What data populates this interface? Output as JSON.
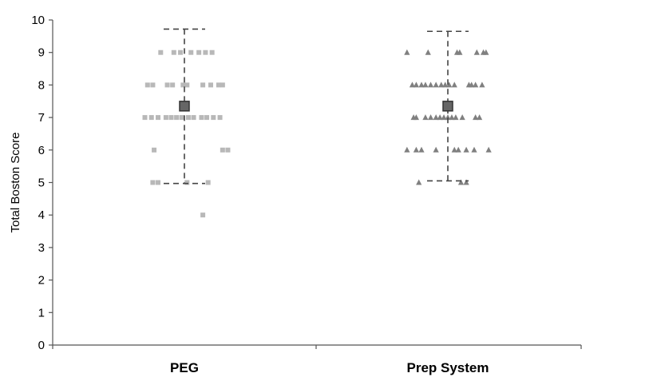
{
  "chart_data": {
    "type": "scatter",
    "ylabel": "Total Boston Score",
    "ylim": [
      0,
      10
    ],
    "yticks": [
      0,
      1,
      2,
      3,
      4,
      5,
      6,
      7,
      8,
      9,
      10
    ],
    "categories": [
      "PEG",
      "Prep System"
    ],
    "grid": false,
    "legend": "none",
    "series": [
      {
        "category": "PEG",
        "marker": "square",
        "color": "#b8b8b8",
        "points": [
          {
            "offset": -0.18,
            "y": 9
          },
          {
            "offset": -0.08,
            "y": 9
          },
          {
            "offset": -0.03,
            "y": 9
          },
          {
            "offset": 0.05,
            "y": 9
          },
          {
            "offset": 0.11,
            "y": 9
          },
          {
            "offset": 0.16,
            "y": 9
          },
          {
            "offset": 0.21,
            "y": 9
          },
          {
            "offset": -0.28,
            "y": 8
          },
          {
            "offset": -0.24,
            "y": 8
          },
          {
            "offset": -0.13,
            "y": 8
          },
          {
            "offset": -0.09,
            "y": 8
          },
          {
            "offset": -0.01,
            "y": 8
          },
          {
            "offset": 0.02,
            "y": 8
          },
          {
            "offset": 0.14,
            "y": 8
          },
          {
            "offset": 0.2,
            "y": 8
          },
          {
            "offset": 0.26,
            "y": 8
          },
          {
            "offset": 0.29,
            "y": 8
          },
          {
            "offset": -0.3,
            "y": 7
          },
          {
            "offset": -0.25,
            "y": 7
          },
          {
            "offset": -0.2,
            "y": 7
          },
          {
            "offset": -0.14,
            "y": 7
          },
          {
            "offset": -0.1,
            "y": 7
          },
          {
            "offset": -0.06,
            "y": 7
          },
          {
            "offset": -0.02,
            "y": 7
          },
          {
            "offset": 0.03,
            "y": 7
          },
          {
            "offset": 0.07,
            "y": 7
          },
          {
            "offset": 0.13,
            "y": 7
          },
          {
            "offset": 0.17,
            "y": 7
          },
          {
            "offset": 0.22,
            "y": 7
          },
          {
            "offset": 0.27,
            "y": 7
          },
          {
            "offset": -0.23,
            "y": 6
          },
          {
            "offset": 0.29,
            "y": 6
          },
          {
            "offset": 0.33,
            "y": 6
          },
          {
            "offset": -0.24,
            "y": 5
          },
          {
            "offset": -0.2,
            "y": 5
          },
          {
            "offset": 0.02,
            "y": 5
          },
          {
            "offset": 0.18,
            "y": 5
          },
          {
            "offset": 0.14,
            "y": 4
          }
        ],
        "mean": 7.35,
        "whisker_low": 4.97,
        "whisker_high": 9.72
      },
      {
        "category": "Prep System",
        "marker": "triangle",
        "color": "#808080",
        "points": [
          {
            "offset": -0.31,
            "y": 9
          },
          {
            "offset": -0.15,
            "y": 9
          },
          {
            "offset": 0.07,
            "y": 9
          },
          {
            "offset": 0.09,
            "y": 9
          },
          {
            "offset": 0.22,
            "y": 9
          },
          {
            "offset": 0.27,
            "y": 9
          },
          {
            "offset": 0.29,
            "y": 9
          },
          {
            "offset": -0.27,
            "y": 8
          },
          {
            "offset": -0.24,
            "y": 8
          },
          {
            "offset": -0.2,
            "y": 8
          },
          {
            "offset": -0.17,
            "y": 8
          },
          {
            "offset": -0.13,
            "y": 8
          },
          {
            "offset": -0.09,
            "y": 8
          },
          {
            "offset": -0.05,
            "y": 8
          },
          {
            "offset": -0.02,
            "y": 8
          },
          {
            "offset": 0.01,
            "y": 8
          },
          {
            "offset": 0.05,
            "y": 8
          },
          {
            "offset": 0.16,
            "y": 8
          },
          {
            "offset": 0.18,
            "y": 8
          },
          {
            "offset": 0.21,
            "y": 8
          },
          {
            "offset": 0.26,
            "y": 8
          },
          {
            "offset": -0.26,
            "y": 7
          },
          {
            "offset": -0.24,
            "y": 7
          },
          {
            "offset": -0.17,
            "y": 7
          },
          {
            "offset": -0.13,
            "y": 7
          },
          {
            "offset": -0.09,
            "y": 7
          },
          {
            "offset": -0.06,
            "y": 7
          },
          {
            "offset": -0.03,
            "y": 7
          },
          {
            "offset": 0.0,
            "y": 7
          },
          {
            "offset": 0.03,
            "y": 7
          },
          {
            "offset": 0.06,
            "y": 7
          },
          {
            "offset": 0.11,
            "y": 7
          },
          {
            "offset": 0.21,
            "y": 7
          },
          {
            "offset": 0.24,
            "y": 7
          },
          {
            "offset": -0.31,
            "y": 6
          },
          {
            "offset": -0.24,
            "y": 6
          },
          {
            "offset": -0.2,
            "y": 6
          },
          {
            "offset": -0.09,
            "y": 6
          },
          {
            "offset": 0.05,
            "y": 6
          },
          {
            "offset": 0.08,
            "y": 6
          },
          {
            "offset": 0.14,
            "y": 6
          },
          {
            "offset": 0.2,
            "y": 6
          },
          {
            "offset": 0.31,
            "y": 6
          },
          {
            "offset": -0.22,
            "y": 5
          },
          {
            "offset": 0.1,
            "y": 5
          },
          {
            "offset": 0.14,
            "y": 5
          }
        ],
        "mean": 7.35,
        "whisker_low": 5.05,
        "whisker_high": 9.65
      }
    ]
  }
}
